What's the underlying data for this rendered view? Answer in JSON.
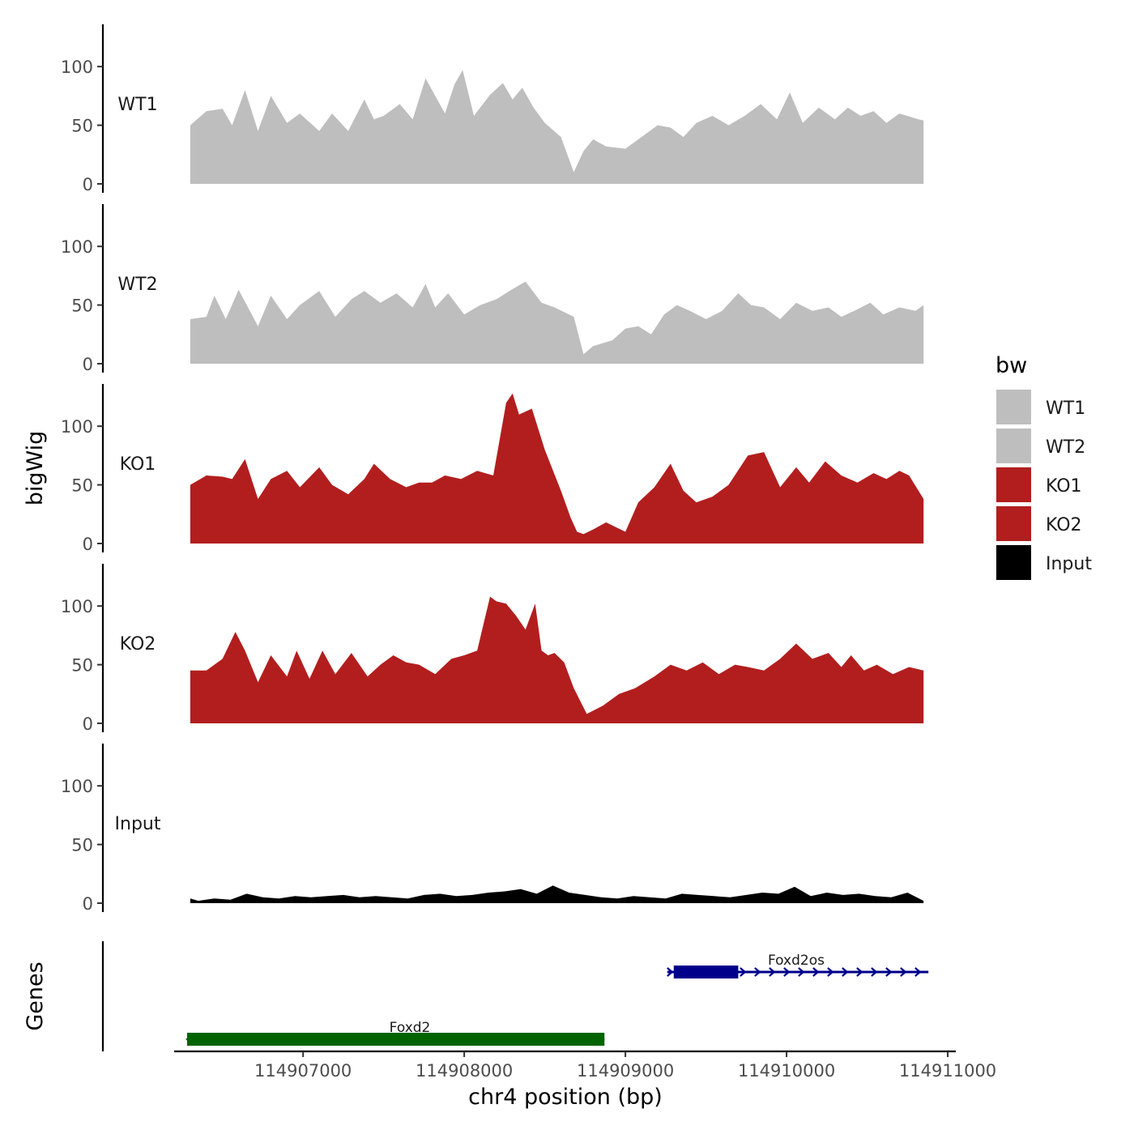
{
  "chart_data": {
    "type": "area",
    "x_label": "chr4 position (bp)",
    "y_label": "bigWig",
    "genes_label": "Genes",
    "x_range": [
      114906200,
      114911050
    ],
    "x_ticks": [
      114907000,
      114908000,
      114909000,
      114910000,
      114911000
    ],
    "x_tick_labels": [
      "114907000",
      "114908000",
      "114909000",
      "114910000",
      "114911000"
    ],
    "y_range": [
      0,
      135
    ],
    "y_ticks": [
      0,
      50,
      100
    ],
    "y_tick_labels": [
      "0",
      "50",
      "100"
    ],
    "tracks": [
      {
        "name": "WT1",
        "color": "#bebebe",
        "x": [
          114906300,
          114906400,
          114906500,
          114906560,
          114906640,
          114906720,
          114906800,
          114906900,
          114906980,
          114907100,
          114907180,
          114907280,
          114907380,
          114907440,
          114907500,
          114907600,
          114907680,
          114907760,
          114907880,
          114907940,
          114907990,
          114908060,
          114908160,
          114908240,
          114908300,
          114908360,
          114908430,
          114908500,
          114908600,
          114908680,
          114908740,
          114908800,
          114908880,
          114909000,
          114909100,
          114909200,
          114909280,
          114909360,
          114909440,
          114909540,
          114909640,
          114909740,
          114909840,
          114909940,
          114910020,
          114910100,
          114910200,
          114910300,
          114910380,
          114910460,
          114910540,
          114910620,
          114910700,
          114910820,
          114910850
        ],
        "values": [
          50,
          62,
          64,
          50,
          80,
          45,
          75,
          52,
          60,
          45,
          60,
          45,
          72,
          55,
          58,
          68,
          55,
          90,
          60,
          85,
          97,
          58,
          76,
          86,
          72,
          82,
          65,
          52,
          40,
          10,
          28,
          38,
          32,
          30,
          40,
          50,
          48,
          40,
          52,
          58,
          50,
          58,
          68,
          55,
          78,
          52,
          65,
          55,
          65,
          58,
          62,
          52,
          60,
          55,
          54
        ]
      },
      {
        "name": "WT2",
        "color": "#bebebe",
        "x": [
          114906300,
          114906400,
          114906450,
          114906520,
          114906600,
          114906720,
          114906800,
          114906900,
          114906980,
          114907100,
          114907200,
          114907300,
          114907380,
          114907480,
          114907580,
          114907680,
          114907760,
          114907820,
          114907900,
          114908000,
          114908100,
          114908200,
          114908280,
          114908380,
          114908480,
          114908560,
          114908680,
          114908740,
          114908800,
          114908920,
          114909000,
          114909080,
          114909160,
          114909240,
          114909320,
          114909400,
          114909500,
          114909600,
          114909700,
          114909780,
          114909860,
          114909960,
          114910060,
          114910160,
          114910260,
          114910340,
          114910420,
          114910520,
          114910600,
          114910700,
          114910800,
          114910850
        ],
        "values": [
          38,
          40,
          58,
          38,
          63,
          32,
          58,
          38,
          50,
          62,
          40,
          55,
          62,
          52,
          60,
          48,
          68,
          48,
          60,
          42,
          50,
          55,
          62,
          70,
          52,
          48,
          40,
          8,
          15,
          20,
          30,
          32,
          25,
          42,
          50,
          45,
          38,
          45,
          60,
          50,
          48,
          38,
          52,
          45,
          48,
          40,
          45,
          52,
          42,
          48,
          45,
          50
        ]
      },
      {
        "name": "KO1",
        "color": "#b21e1e",
        "x": [
          114906300,
          114906400,
          114906500,
          114906560,
          114906640,
          114906720,
          114906800,
          114906900,
          114906980,
          114907100,
          114907180,
          114907280,
          114907380,
          114907440,
          114907540,
          114907640,
          114907720,
          114907800,
          114907880,
          114907980,
          114908080,
          114908180,
          114908260,
          114908300,
          114908340,
          114908420,
          114908500,
          114908600,
          114908660,
          114908700,
          114908740,
          114908800,
          114908880,
          114909000,
          114909080,
          114909180,
          114909280,
          114909360,
          114909440,
          114909540,
          114909640,
          114909760,
          114909860,
          114909960,
          114910060,
          114910140,
          114910240,
          114910340,
          114910440,
          114910540,
          114910620,
          114910700,
          114910760,
          114910850
        ],
        "values": [
          50,
          58,
          57,
          55,
          72,
          38,
          55,
          62,
          48,
          65,
          50,
          42,
          55,
          68,
          55,
          48,
          52,
          52,
          58,
          55,
          62,
          58,
          120,
          128,
          110,
          115,
          80,
          45,
          22,
          10,
          8,
          12,
          18,
          10,
          35,
          48,
          68,
          45,
          35,
          40,
          50,
          75,
          78,
          48,
          65,
          52,
          70,
          58,
          52,
          60,
          55,
          62,
          58,
          38
        ]
      },
      {
        "name": "KO2",
        "color": "#b21e1e",
        "x": [
          114906300,
          114906400,
          114906500,
          114906580,
          114906640,
          114906720,
          114906800,
          114906900,
          114906960,
          114907040,
          114907120,
          114907200,
          114907300,
          114907400,
          114907480,
          114907560,
          114907640,
          114907720,
          114907820,
          114907920,
          114908000,
          114908080,
          114908160,
          114908200,
          114908260,
          114908320,
          114908380,
          114908440,
          114908480,
          114908520,
          114908560,
          114908620,
          114908680,
          114908760,
          114908860,
          114908960,
          114909060,
          114909180,
          114909280,
          114909380,
          114909480,
          114909580,
          114909680,
          114909760,
          114909860,
          114909960,
          114910060,
          114910160,
          114910260,
          114910340,
          114910400,
          114910480,
          114910560,
          114910660,
          114910760,
          114910850
        ],
        "values": [
          45,
          45,
          55,
          78,
          62,
          35,
          58,
          40,
          62,
          38,
          62,
          42,
          60,
          40,
          50,
          58,
          52,
          50,
          42,
          55,
          58,
          62,
          108,
          104,
          102,
          92,
          80,
          102,
          62,
          58,
          60,
          52,
          30,
          8,
          15,
          25,
          30,
          40,
          50,
          45,
          52,
          42,
          50,
          48,
          45,
          55,
          68,
          55,
          60,
          48,
          58,
          45,
          50,
          42,
          48,
          45
        ]
      },
      {
        "name": "Input",
        "color": "#000000",
        "x": [
          114906300,
          114906350,
          114906450,
          114906550,
          114906650,
          114906750,
          114906850,
          114906950,
          114907050,
          114907150,
          114907250,
          114907350,
          114907450,
          114907550,
          114907650,
          114907750,
          114907850,
          114907950,
          114908050,
          114908150,
          114908250,
          114908350,
          114908450,
          114908550,
          114908650,
          114908750,
          114908850,
          114908950,
          114909050,
          114909150,
          114909250,
          114909350,
          114909450,
          114909550,
          114909650,
          114909750,
          114909850,
          114909950,
          114910050,
          114910150,
          114910250,
          114910350,
          114910450,
          114910550,
          114910650,
          114910750,
          114910850
        ],
        "values": [
          4,
          2,
          4,
          3,
          8,
          5,
          4,
          6,
          5,
          6,
          7,
          5,
          6,
          5,
          4,
          7,
          8,
          6,
          7,
          9,
          10,
          12,
          8,
          15,
          9,
          7,
          5,
          4,
          6,
          5,
          4,
          8,
          7,
          6,
          5,
          7,
          9,
          8,
          14,
          6,
          9,
          7,
          8,
          6,
          5,
          9,
          2
        ]
      }
    ],
    "genes": [
      {
        "name": "Foxd2",
        "start": 114906280,
        "end": 114908870,
        "strand": "-",
        "color": "#006400",
        "thick_start": 114906280,
        "thick_end": 114908870
      },
      {
        "name": "Foxd2os",
        "start": 114909260,
        "end": 114910880,
        "strand": "+",
        "color": "#00008b",
        "thick_start": 114909300,
        "thick_end": 114909700
      }
    ],
    "legend": {
      "title": "bw",
      "entries": [
        {
          "label": "WT1",
          "color": "#bebebe"
        },
        {
          "label": "WT2",
          "color": "#bebebe"
        },
        {
          "label": "KO1",
          "color": "#b21e1e"
        },
        {
          "label": "KO2",
          "color": "#b21e1e"
        },
        {
          "label": "Input",
          "color": "#000000"
        }
      ]
    }
  }
}
